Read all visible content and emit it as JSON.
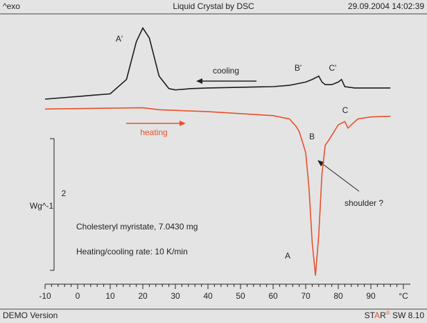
{
  "header": {
    "left": "^exo",
    "title": "Liquid Crystal by DSC",
    "right": "29.09.2004 14:02:39"
  },
  "footer": {
    "left": "DEMO Version",
    "right_parts": [
      "ST",
      "A",
      "R",
      "®",
      " SW 8.10"
    ]
  },
  "chart_data": {
    "type": "line",
    "xlim": [
      -10,
      100
    ],
    "xticks": [
      -10,
      0,
      10,
      20,
      30,
      40,
      50,
      60,
      70,
      80,
      90,
      {
        "value": 100,
        "label": "°C"
      }
    ],
    "ylim": [
      0,
      4.1
    ],
    "scale_bar": {
      "value": 2,
      "label": "Wg^-1"
    },
    "series": [
      {
        "color": "#1a1a1a",
        "x": [
          -10,
          10,
          15,
          18,
          20,
          22,
          25,
          28,
          30,
          35,
          40,
          50,
          60,
          65,
          70,
          72,
          74,
          75,
          76,
          78,
          80,
          81,
          82,
          85,
          90,
          96
        ],
        "values": [
          2.81,
          2.89,
          3.11,
          3.68,
          3.89,
          3.74,
          3.16,
          2.97,
          2.95,
          2.97,
          2.98,
          2.99,
          3.0,
          3.02,
          3.07,
          3.11,
          3.16,
          3.07,
          3.03,
          3.03,
          3.07,
          3.11,
          3.0,
          2.98,
          2.98,
          2.98
        ]
      },
      {
        "color": "#e8502a",
        "x": [
          -10,
          20,
          25,
          40,
          60,
          65,
          67,
          68,
          70,
          71,
          72,
          73,
          74,
          75,
          76,
          77,
          78,
          80,
          82,
          83,
          84,
          86,
          90,
          96
        ],
        "values": [
          2.66,
          2.68,
          2.65,
          2.62,
          2.56,
          2.51,
          2.4,
          2.32,
          2.0,
          1.47,
          0.63,
          0.13,
          0.74,
          1.68,
          2.11,
          2.18,
          2.26,
          2.42,
          2.47,
          2.37,
          2.42,
          2.51,
          2.54,
          2.55
        ]
      }
    ],
    "annotations": [
      "A'",
      "cooling",
      "B'",
      "C'",
      "heating",
      "B",
      "C",
      "shoulder ?",
      "Cholesteryl myristate, 7.0430 mg",
      "Heating/cooling rate: 10 K/min",
      "A"
    ]
  }
}
